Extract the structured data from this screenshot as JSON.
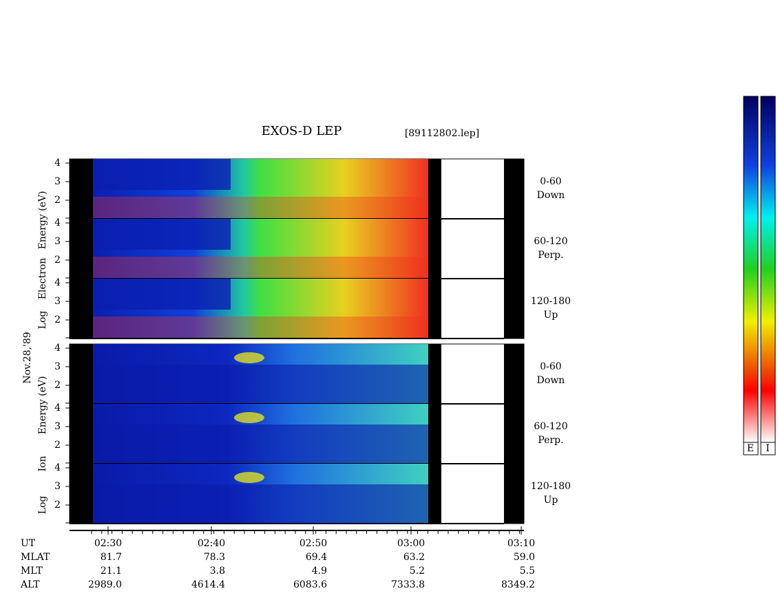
{
  "title": "EXOS-D LEP",
  "file": "[89112802.lep]",
  "date": "Nov.28,'89",
  "yticks": [
    "4",
    "3",
    "2"
  ],
  "electron": {
    "axis_label": [
      "Log",
      "Electron",
      "Energy (eV)"
    ],
    "panels": [
      {
        "angle": "0-60",
        "dir": "Down"
      },
      {
        "angle": "60-120",
        "dir": "Perp."
      },
      {
        "angle": "120-180",
        "dir": "Up"
      }
    ]
  },
  "ion": {
    "axis_label": [
      "Log",
      "Ion",
      "Energy (eV)"
    ],
    "panels": [
      {
        "angle": "0-60",
        "dir": "Down"
      },
      {
        "angle": "60-120",
        "dir": "Perp."
      },
      {
        "angle": "120-180",
        "dir": "Up"
      }
    ]
  },
  "orbit": {
    "row_labels": [
      "UT",
      "MLAT",
      "MLT",
      "ALT"
    ],
    "columns": [
      [
        "02:30",
        "81.7",
        "21.1",
        "2989.0"
      ],
      [
        "02:40",
        "78.3",
        "3.8",
        "4614.4"
      ],
      [
        "02:50",
        "69.4",
        "4.9",
        "6083.6"
      ],
      [
        "03:00",
        "63.2",
        "5.2",
        "7333.8"
      ],
      [
        "03:10",
        "59.0",
        "5.5",
        "8349.2"
      ]
    ]
  },
  "colorbar": {
    "labels": [
      "E",
      "I"
    ]
  }
}
